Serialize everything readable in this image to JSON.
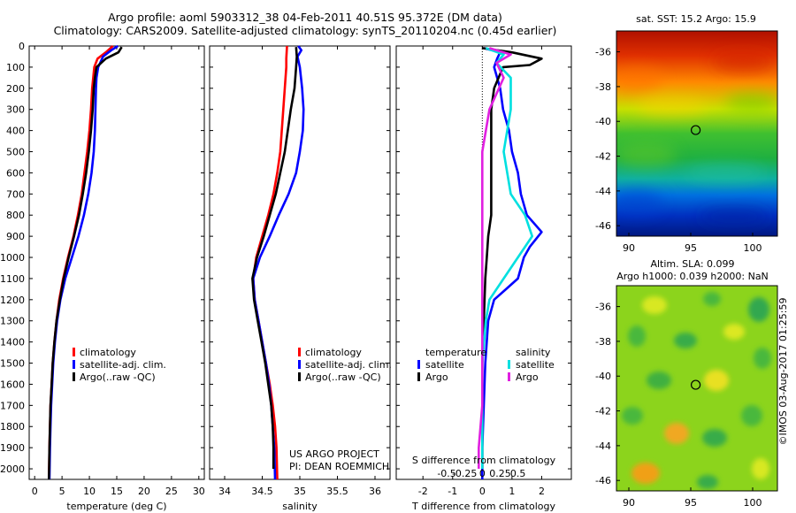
{
  "header": {
    "line1": "Argo profile: aoml 5903312_38 04-Feb-2011 40.51S 95.372E (DM data)",
    "line2": "Climatology: CARS2009. Satellite-adjusted climatology: synTS_20110204.nc (0.45d earlier)"
  },
  "credit": "US ARGO PROJECT",
  "pi": "PI: DEAN ROEMMICH",
  "imos": "©IMOS 03-Aug-2017 01:25:59",
  "chart_data": [
    {
      "type": "line",
      "xlabel": "temperature (deg C)",
      "ylim": [
        2050,
        0
      ],
      "xlim": [
        -1,
        31
      ],
      "xticks": [
        0,
        5,
        10,
        15,
        20,
        25,
        30
      ],
      "yticks": [
        0,
        100,
        200,
        300,
        400,
        500,
        600,
        700,
        800,
        900,
        1000,
        1100,
        1200,
        1300,
        1400,
        1500,
        1600,
        1700,
        1800,
        1900,
        2000
      ],
      "legend": [
        "climatology",
        "satellite-adj. clim.",
        "Argo(..raw -QC)"
      ],
      "series": [
        {
          "name": "climatology",
          "color": "#ff0000",
          "points": [
            [
              14.3,
              0
            ],
            [
              13.0,
              30
            ],
            [
              11.5,
              60
            ],
            [
              10.9,
              100
            ],
            [
              10.7,
              150
            ],
            [
              10.5,
              200
            ],
            [
              10.3,
              300
            ],
            [
              10.0,
              400
            ],
            [
              9.6,
              500
            ],
            [
              9.1,
              600
            ],
            [
              8.6,
              700
            ],
            [
              7.9,
              800
            ],
            [
              7.1,
              900
            ],
            [
              6.1,
              1000
            ],
            [
              5.2,
              1100
            ],
            [
              4.5,
              1200
            ],
            [
              4.0,
              1300
            ],
            [
              3.6,
              1400
            ],
            [
              3.3,
              1500
            ],
            [
              3.1,
              1600
            ],
            [
              2.9,
              1700
            ],
            [
              2.8,
              1800
            ],
            [
              2.7,
              1900
            ],
            [
              2.6,
              2050
            ]
          ]
        },
        {
          "name": "satellite-adj. clim.",
          "color": "#0000ff",
          "points": [
            [
              15.2,
              0
            ],
            [
              14.0,
              20
            ],
            [
              12.5,
              50
            ],
            [
              11.6,
              100
            ],
            [
              11.3,
              150
            ],
            [
              11.2,
              200
            ],
            [
              11.1,
              300
            ],
            [
              11.0,
              400
            ],
            [
              10.8,
              500
            ],
            [
              10.4,
              600
            ],
            [
              9.8,
              700
            ],
            [
              9.0,
              800
            ],
            [
              8.0,
              900
            ],
            [
              6.8,
              1000
            ],
            [
              5.6,
              1100
            ],
            [
              4.7,
              1200
            ],
            [
              4.1,
              1300
            ],
            [
              3.7,
              1400
            ],
            [
              3.4,
              1500
            ],
            [
              3.2,
              1600
            ],
            [
              3.0,
              1700
            ],
            [
              2.9,
              1800
            ],
            [
              2.8,
              1900
            ],
            [
              2.7,
              2050
            ]
          ]
        },
        {
          "name": "Argo(..raw -QC)",
          "color": "#000000",
          "points": [
            [
              15.9,
              5
            ],
            [
              15.3,
              30
            ],
            [
              13.0,
              60
            ],
            [
              11.3,
              100
            ],
            [
              11.0,
              150
            ],
            [
              10.8,
              200
            ],
            [
              10.6,
              300
            ],
            [
              10.3,
              400
            ],
            [
              9.9,
              500
            ],
            [
              9.4,
              600
            ],
            [
              8.8,
              700
            ],
            [
              8.1,
              800
            ],
            [
              7.2,
              900
            ],
            [
              6.2,
              1000
            ],
            [
              5.3,
              1100
            ],
            [
              4.6,
              1200
            ],
            [
              4.0,
              1300
            ],
            [
              3.6,
              1400
            ],
            [
              3.3,
              1500
            ],
            [
              3.1,
              1600
            ],
            [
              2.9,
              1700
            ],
            [
              2.8,
              1800
            ],
            [
              2.7,
              1900
            ],
            [
              2.6,
              2050
            ]
          ]
        }
      ]
    },
    {
      "type": "line",
      "xlabel": "salinity",
      "ylim": [
        2050,
        0
      ],
      "xlim": [
        33.8,
        36.2
      ],
      "xticks": [
        34,
        34.5,
        35,
        35.5,
        36
      ],
      "legend": [
        "climatology",
        "satellite-adj. clim.",
        "Argo(..raw -QC)"
      ],
      "series": [
        {
          "name": "climatology",
          "color": "#ff0000",
          "points": [
            [
              34.83,
              0
            ],
            [
              34.82,
              60
            ],
            [
              34.82,
              100
            ],
            [
              34.8,
              200
            ],
            [
              34.78,
              300
            ],
            [
              34.76,
              400
            ],
            [
              34.74,
              500
            ],
            [
              34.7,
              600
            ],
            [
              34.65,
              700
            ],
            [
              34.58,
              800
            ],
            [
              34.5,
              900
            ],
            [
              34.42,
              1000
            ],
            [
              34.38,
              1100
            ],
            [
              34.4,
              1200
            ],
            [
              34.45,
              1300
            ],
            [
              34.5,
              1400
            ],
            [
              34.55,
              1500
            ],
            [
              34.6,
              1600
            ],
            [
              34.64,
              1700
            ],
            [
              34.67,
              1800
            ],
            [
              34.69,
              1900
            ],
            [
              34.7,
              2050
            ]
          ]
        },
        {
          "name": "satellite-adj. clim.",
          "color": "#0000ff",
          "points": [
            [
              34.98,
              0
            ],
            [
              35.02,
              20
            ],
            [
              34.97,
              50
            ],
            [
              35.0,
              100
            ],
            [
              35.03,
              200
            ],
            [
              35.05,
              300
            ],
            [
              35.04,
              400
            ],
            [
              35.0,
              500
            ],
            [
              34.95,
              600
            ],
            [
              34.85,
              700
            ],
            [
              34.72,
              800
            ],
            [
              34.6,
              900
            ],
            [
              34.47,
              1000
            ],
            [
              34.38,
              1100
            ],
            [
              34.4,
              1200
            ],
            [
              34.45,
              1300
            ],
            [
              34.5,
              1400
            ],
            [
              34.55,
              1500
            ],
            [
              34.59,
              1600
            ],
            [
              34.62,
              1700
            ],
            [
              34.64,
              1800
            ],
            [
              34.66,
              1900
            ],
            [
              34.67,
              2050
            ]
          ]
        },
        {
          "name": "Argo(..raw -QC)",
          "color": "#000000",
          "points": [
            [
              34.95,
              5
            ],
            [
              34.96,
              50
            ],
            [
              34.95,
              100
            ],
            [
              34.93,
              200
            ],
            [
              34.88,
              300
            ],
            [
              34.84,
              400
            ],
            [
              34.8,
              500
            ],
            [
              34.74,
              600
            ],
            [
              34.68,
              700
            ],
            [
              34.6,
              800
            ],
            [
              34.52,
              900
            ],
            [
              34.43,
              1000
            ],
            [
              34.37,
              1100
            ],
            [
              34.39,
              1200
            ],
            [
              34.44,
              1300
            ],
            [
              34.49,
              1400
            ],
            [
              34.54,
              1500
            ],
            [
              34.58,
              1600
            ],
            [
              34.62,
              1700
            ],
            [
              34.64,
              1800
            ],
            [
              34.65,
              1900
            ],
            [
              34.65,
              2000
            ]
          ]
        }
      ]
    },
    {
      "type": "line",
      "xlabel": "T difference from climatology",
      "s_axis_label": "S difference from climatology",
      "ylim": [
        2050,
        0
      ],
      "xlim": [
        -2.9,
        3.0
      ],
      "xticks": [
        -2,
        -1,
        0,
        1,
        2
      ],
      "s_ticks": [
        -0.5,
        -0.25,
        0,
        0.25,
        0.5
      ],
      "legend": {
        "temperature": [
          "satellite",
          "Argo"
        ],
        "salinity": [
          "satellite",
          "Argo"
        ],
        "temperature_title": "temperature",
        "salinity_title": "salinity"
      },
      "series": [
        {
          "name": "satellite",
          "group": "temperature",
          "color": "#0000ff",
          "points": [
            [
              0.05,
              10
            ],
            [
              0.6,
              30
            ],
            [
              0.5,
              60
            ],
            [
              0.4,
              100
            ],
            [
              0.6,
              200
            ],
            [
              0.7,
              300
            ],
            [
              0.9,
              400
            ],
            [
              1.0,
              500
            ],
            [
              1.2,
              600
            ],
            [
              1.3,
              700
            ],
            [
              1.5,
              800
            ],
            [
              2.0,
              880
            ],
            [
              1.6,
              950
            ],
            [
              1.4,
              1000
            ],
            [
              1.2,
              1100
            ],
            [
              0.8,
              1150
            ],
            [
              0.4,
              1200
            ],
            [
              0.2,
              1300
            ],
            [
              0.1,
              1500
            ],
            [
              0.05,
              1700
            ],
            [
              0.0,
              1900
            ],
            [
              0.0,
              2050
            ]
          ]
        },
        {
          "name": "Argo",
          "group": "temperature",
          "color": "#000000",
          "points": [
            [
              0.0,
              10
            ],
            [
              1.0,
              30
            ],
            [
              2.0,
              60
            ],
            [
              1.6,
              90
            ],
            [
              0.7,
              100
            ],
            [
              0.4,
              200
            ],
            [
              0.3,
              300
            ],
            [
              0.3,
              400
            ],
            [
              0.3,
              500
            ],
            [
              0.3,
              600
            ],
            [
              0.3,
              700
            ],
            [
              0.3,
              800
            ],
            [
              0.2,
              900
            ],
            [
              0.15,
              1000
            ],
            [
              0.1,
              1100
            ],
            [
              0.05,
              1300
            ],
            [
              0.0,
              1500
            ],
            [
              0.0,
              1700
            ],
            [
              0.0,
              2000
            ]
          ]
        },
        {
          "name": "satellite",
          "group": "salinity",
          "color": "#00e0e0",
          "points": [
            [
              0.05,
              10
            ],
            [
              0.3,
              40
            ],
            [
              0.2,
              80
            ],
            [
              0.4,
              150
            ],
            [
              0.4,
              300
            ],
            [
              0.3,
              500
            ],
            [
              0.4,
              700
            ],
            [
              0.6,
              800
            ],
            [
              0.7,
              900
            ],
            [
              0.5,
              1000
            ],
            [
              0.3,
              1100
            ],
            [
              0.1,
              1200
            ],
            [
              0.05,
              1300
            ],
            [
              0.0,
              1500
            ],
            [
              0.0,
              1700
            ],
            [
              0.0,
              2000
            ]
          ]
        },
        {
          "name": "Argo",
          "group": "salinity",
          "color": "#e020e0",
          "points": [
            [
              0.1,
              10
            ],
            [
              0.4,
              40
            ],
            [
              0.2,
              80
            ],
            [
              0.3,
              150
            ],
            [
              0.1,
              300
            ],
            [
              0.0,
              500
            ],
            [
              0.0,
              700
            ],
            [
              0.0,
              900
            ],
            [
              0.0,
              1100
            ],
            [
              0.0,
              1300
            ],
            [
              0.0,
              1500
            ],
            [
              0.0,
              1700
            ],
            [
              -0.05,
              1900
            ],
            [
              -0.05,
              2000
            ]
          ]
        }
      ]
    },
    {
      "type": "heatmap",
      "title": "sat. SST: 15.2 Argo: 15.9",
      "xlim": [
        89,
        102
      ],
      "ylim": [
        -46.6,
        -34.8
      ],
      "xticks": [
        90,
        95,
        100
      ],
      "yticks": [
        -36,
        -38,
        -40,
        -42,
        -44,
        -46
      ],
      "marker": [
        95.4,
        -40.5
      ]
    },
    {
      "type": "heatmap",
      "title": "Altim. SLA: 0.099",
      "subtitle": "Argo h1000: 0.039 h2000: NaN",
      "xlim": [
        89,
        102
      ],
      "ylim": [
        -46.6,
        -34.8
      ],
      "xticks": [
        90,
        95,
        100
      ],
      "yticks": [
        -36,
        -38,
        -40,
        -42,
        -44,
        -46
      ],
      "marker": [
        95.4,
        -40.5
      ]
    }
  ]
}
